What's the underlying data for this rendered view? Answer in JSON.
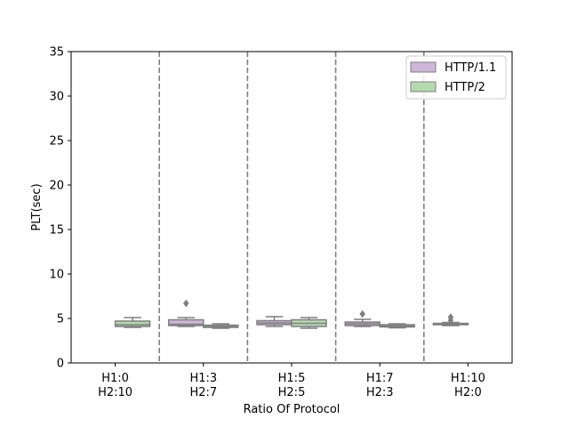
{
  "chart_data": {
    "type": "box",
    "xlabel": "Ratio Of Protocol",
    "ylabel": "PLT(sec)",
    "ylim": [
      0,
      35
    ],
    "yticks": [
      0,
      5,
      10,
      15,
      20,
      25,
      30,
      35
    ],
    "categories": [
      {
        "line1": "H1:0",
        "line2": "H2:10"
      },
      {
        "line1": "H1:3",
        "line2": "H2:7"
      },
      {
        "line1": "H1:5",
        "line2": "H2:5"
      },
      {
        "line1": "H1:7",
        "line2": "H2:3"
      },
      {
        "line1": "H1:10",
        "line2": "H2:0"
      }
    ],
    "group_separators": true,
    "legend_position": "top-right",
    "series": [
      {
        "name": "HTTP/1.1",
        "color": "#cdb6d9",
        "boxes": [
          null,
          {
            "min": 4.1,
            "q1": 4.2,
            "median": 4.35,
            "q3": 4.85,
            "max": 5.1,
            "outliers": [
              6.7
            ]
          },
          {
            "min": 4.1,
            "q1": 4.3,
            "median": 4.5,
            "q3": 4.75,
            "max": 5.2,
            "outliers": []
          },
          {
            "min": 4.1,
            "q1": 4.2,
            "median": 4.4,
            "q3": 4.6,
            "max": 4.9,
            "outliers": [
              5.5
            ]
          },
          {
            "min": 4.2,
            "q1": 4.3,
            "median": 4.35,
            "q3": 4.45,
            "max": 4.55,
            "outliers": [
              4.8,
              5.15
            ]
          }
        ]
      },
      {
        "name": "HTTP/2",
        "color": "#b6dab0",
        "boxes": [
          {
            "min": 4.0,
            "q1": 4.1,
            "median": 4.3,
            "q3": 4.7,
            "max": 5.1,
            "outliers": []
          },
          {
            "min": 3.9,
            "q1": 4.0,
            "median": 4.1,
            "q3": 4.25,
            "max": 4.4,
            "outliers": []
          },
          {
            "min": 3.9,
            "q1": 4.1,
            "median": 4.45,
            "q3": 4.85,
            "max": 5.1,
            "outliers": []
          },
          {
            "min": 3.95,
            "q1": 4.05,
            "median": 4.15,
            "q3": 4.3,
            "max": 4.4,
            "outliers": []
          },
          null
        ]
      }
    ]
  }
}
